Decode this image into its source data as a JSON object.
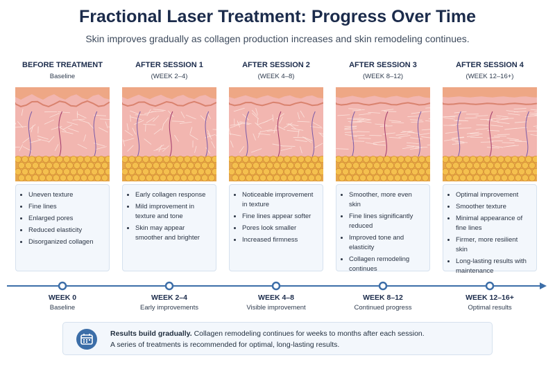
{
  "header": {
    "title": "Fractional Laser Treatment: Progress Over Time",
    "subtitle": "Skin improves gradually as collagen production increases and skin remodeling continues."
  },
  "stages": [
    {
      "heading": "BEFORE TREATMENT",
      "subheading": "Baseline",
      "bullets": [
        "Uneven texture",
        "Fine lines",
        "Enlarged pores",
        "Reduced elasticity",
        "Disorganized collagen"
      ]
    },
    {
      "heading": "AFTER SESSION 1",
      "subheading": "(WEEK 2–4)",
      "bullets": [
        "Early collagen response",
        "Mild improvement in texture and tone",
        "Skin may appear smoother and brighter"
      ]
    },
    {
      "heading": "AFTER SESSION 2",
      "subheading": "(WEEK 4–8)",
      "bullets": [
        "Noticeable improvement in texture",
        "Fine lines appear softer",
        "Pores look smaller",
        "Increased firmness"
      ]
    },
    {
      "heading": "AFTER SESSION 3",
      "subheading": "(WEEK 8–12)",
      "bullets": [
        "Smoother, more even skin",
        "Fine lines significantly reduced",
        "Improved tone and elasticity",
        "Collagen remodeling continues"
      ]
    },
    {
      "heading": "AFTER SESSION 4",
      "subheading": "(WEEK 12–16+)",
      "bullets": [
        "Optimal improvement",
        "Smoother texture",
        "Minimal appearance of fine lines",
        "Firmer, more resilient skin",
        "Long-lasting results with maintenance"
      ]
    }
  ],
  "timeline": [
    {
      "week": "WEEK 0",
      "caption": "Baseline"
    },
    {
      "week": "WEEK 2–4",
      "caption": "Early improvements"
    },
    {
      "week": "WEEK 4–8",
      "caption": "Visible improvement"
    },
    {
      "week": "WEEK 8–12",
      "caption": "Continued progress"
    },
    {
      "week": "WEEK 12–16+",
      "caption": "Optimal results"
    }
  ],
  "note": {
    "bold": "Results build gradually.",
    "text": "Collagen remodeling continues for weeks to months after each session.",
    "line2": "A series of treatments is recommended for optimal, long-lasting results."
  }
}
